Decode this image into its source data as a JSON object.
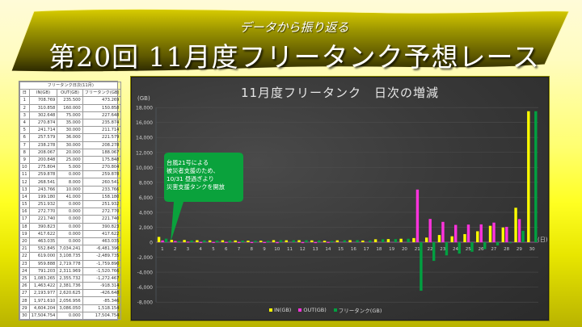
{
  "banner": {
    "subtitle": "データから振り返る",
    "title": "第20回 11月度フリータンク予想レース"
  },
  "table": {
    "caption": "フリータンク日次(11月)",
    "headers": [
      "日",
      "IN(GB)",
      "OUT(GB)",
      "フリータンク(GB)"
    ],
    "rows": [
      [
        "1",
        "708.769",
        "235.500",
        "473.269"
      ],
      [
        "2",
        "310.858",
        "160.000",
        "150.858"
      ],
      [
        "3",
        "302.648",
        "75.000",
        "227.648"
      ],
      [
        "4",
        "270.874",
        "35.000",
        "235.874"
      ],
      [
        "5",
        "241.714",
        "30.000",
        "211.714"
      ],
      [
        "6",
        "257.579",
        "36.000",
        "221.579"
      ],
      [
        "7",
        "238.278",
        "30.000",
        "208.278"
      ],
      [
        "8",
        "208.067",
        "20.000",
        "188.067"
      ],
      [
        "9",
        "200.848",
        "25.000",
        "175.848"
      ],
      [
        "10",
        "275.804",
        "5.000",
        "270.804"
      ],
      [
        "11",
        "259.878",
        "0.000",
        "259.878"
      ],
      [
        "12",
        "268.541",
        "8.000",
        "260.541"
      ],
      [
        "13",
        "243.766",
        "10.000",
        "233.766"
      ],
      [
        "14",
        "199.180",
        "41.000",
        "158.180"
      ],
      [
        "15",
        "251.932",
        "0.000",
        "251.932"
      ],
      [
        "16",
        "272.770",
        "0.000",
        "272.770"
      ],
      [
        "17",
        "221.740",
        "0.000",
        "221.740"
      ],
      [
        "18",
        "390.823",
        "0.000",
        "390.823"
      ],
      [
        "19",
        "417.622",
        "0.000",
        "417.622"
      ],
      [
        "20",
        "463.035",
        "0.000",
        "463.035"
      ],
      [
        "21",
        "552.845",
        "7,034.241",
        "-6,481.396"
      ],
      [
        "22",
        "619.000",
        "3,108.735",
        "-2,489.735"
      ],
      [
        "23",
        "959.888",
        "2,719.778",
        "-1,759.890"
      ],
      [
        "24",
        "791.203",
        "2,311.969",
        "-1,520.766"
      ],
      [
        "25",
        "1,083.265",
        "2,355.732",
        "-1,272.467"
      ],
      [
        "26",
        "1,463.422",
        "2,381.736",
        "-918.314"
      ],
      [
        "27",
        "2,193.977",
        "2,620.625",
        "-426.648"
      ],
      [
        "28",
        "1,971.610",
        "2,056.956",
        "-85.346"
      ],
      [
        "29",
        "4,604.204",
        "3,086.050",
        "1,518.154"
      ],
      [
        "30",
        "17,504.754",
        "0.000",
        "17,504.754"
      ]
    ]
  },
  "chart": {
    "title": "11月度フリータンク　日次の増減",
    "y_unit": "(GB)",
    "x_unit": "(日)",
    "callout": [
      "台風21号による",
      "被災者支援のため、",
      "10/31 昼過ぎより",
      "災害支援タンクを開放"
    ],
    "legend": [
      {
        "label": "IN(GB)",
        "color": "#ffff00"
      },
      {
        "label": "OUT(GB)",
        "color": "#ff33dd"
      },
      {
        "label": "フリータンク(GB)",
        "color": "#00a040"
      }
    ]
  },
  "chart_data": {
    "type": "bar",
    "title": "11月度フリータンク　日次の増減",
    "xlabel": "(日)",
    "ylabel": "(GB)",
    "ylim": [
      -8000,
      18000
    ],
    "yticks": [
      "18,000",
      "16,000",
      "14,000",
      "12,000",
      "10,000",
      "8,000",
      "6,000",
      "4,000",
      "2,000",
      "0",
      "-2,000",
      "-4,000",
      "-6,000",
      "-8,000"
    ],
    "grid": true,
    "legend_position": "bottom",
    "categories": [
      "1",
      "2",
      "3",
      "4",
      "5",
      "6",
      "7",
      "8",
      "9",
      "10",
      "11",
      "12",
      "13",
      "14",
      "15",
      "16",
      "17",
      "18",
      "19",
      "20",
      "21",
      "22",
      "23",
      "24",
      "25",
      "26",
      "27",
      "28",
      "29",
      "30"
    ],
    "series": [
      {
        "name": "IN(GB)",
        "color": "#ffff00",
        "values": [
          708.769,
          310.858,
          302.648,
          270.874,
          241.714,
          257.579,
          238.278,
          208.067,
          200.848,
          275.804,
          259.878,
          268.541,
          243.766,
          199.18,
          251.932,
          272.77,
          221.74,
          390.823,
          417.622,
          463.035,
          552.845,
          619.0,
          959.888,
          791.203,
          1083.265,
          1463.422,
          2193.977,
          1971.61,
          4604.204,
          17504.754
        ]
      },
      {
        "name": "OUT(GB)",
        "color": "#ff33dd",
        "values": [
          235.5,
          160.0,
          75.0,
          35.0,
          30.0,
          36.0,
          30.0,
          20.0,
          25.0,
          5.0,
          0,
          8.0,
          10.0,
          41.0,
          0,
          0,
          0,
          0,
          0,
          0,
          7034.241,
          3108.735,
          2719.778,
          2311.969,
          2355.732,
          2381.736,
          2620.625,
          2056.956,
          3086.05,
          0
        ]
      },
      {
        "name": "フリータンク(GB)",
        "color": "#00a040",
        "values": [
          473.269,
          150.858,
          227.648,
          235.874,
          211.714,
          221.579,
          208.278,
          188.067,
          175.848,
          270.804,
          259.878,
          260.541,
          233.766,
          158.18,
          251.932,
          272.77,
          221.74,
          390.823,
          417.622,
          463.035,
          -6481.396,
          -2489.735,
          -1759.89,
          -1520.766,
          -1272.467,
          -918.314,
          -426.648,
          -85.346,
          1518.154,
          17504.754
        ]
      }
    ],
    "annotation": "台風21号による 被災者支援のため、10/31 昼過ぎより 災害支援タンクを開放"
  }
}
